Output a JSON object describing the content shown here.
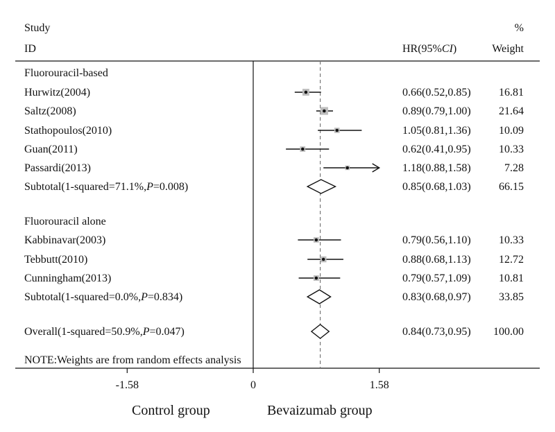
{
  "header": {
    "study_line1": "Study",
    "study_line2": "ID",
    "hr_prefix": "HR(95%",
    "hr_ci": "CI",
    "hr_suffix": ")",
    "weight_line1": "%",
    "weight_line2": "Weight"
  },
  "note": "NOTE:Weights are from random effects analysis",
  "group_labels": {
    "left": "Control group",
    "right": "Bevaizumab group"
  },
  "colors": {
    "ink": "#111111",
    "box": "#bdbdbd",
    "dash": "#777777"
  },
  "chart_data": {
    "type": "forest",
    "x_axis": {
      "ticks": [
        -1.58,
        0,
        1.58
      ],
      "tick_labels": [
        "-1.58",
        "0",
        "1.58"
      ],
      "xlim": [
        -1.58,
        1.58
      ]
    },
    "null_line": 0,
    "overall_line": 0.84,
    "rows": [
      {
        "kind": "heading",
        "label": "Fluorouracil-based"
      },
      {
        "kind": "study",
        "label": "Hurwitz(2004)",
        "hr": 0.66,
        "lo": 0.52,
        "hi": 0.85,
        "ci_text": "0.66(0.52,0.85)",
        "weight": 16.81,
        "weight_text": "16.81"
      },
      {
        "kind": "study",
        "label": "Saltz(2008)",
        "hr": 0.89,
        "lo": 0.79,
        "hi": 1.0,
        "ci_text": "0.89(0.79,1.00)",
        "weight": 21.64,
        "weight_text": "21.64"
      },
      {
        "kind": "study",
        "label": "Stathopoulos(2010)",
        "hr": 1.05,
        "lo": 0.81,
        "hi": 1.36,
        "ci_text": "1.05(0.81,1.36)",
        "weight": 10.09,
        "weight_text": "10.09"
      },
      {
        "kind": "study",
        "label": "Guan(2011)",
        "hr": 0.62,
        "lo": 0.41,
        "hi": 0.95,
        "ci_text": "0.62(0.41,0.95)",
        "weight": 10.33,
        "weight_text": "10.33"
      },
      {
        "kind": "study",
        "label": "Passardi(2013)",
        "hr": 1.18,
        "lo": 0.88,
        "hi": 1.58,
        "ci_text": "1.18(0.88,1.58)",
        "weight": 7.28,
        "weight_text": "7.28",
        "arrow": true
      },
      {
        "kind": "subtotal",
        "label_prefix": "Subtotal(1-squared=71.1%,",
        "p_letter": "P",
        "label_suffix": "=0.008)",
        "hr": 0.85,
        "lo": 0.68,
        "hi": 1.03,
        "ci_text": "0.85(0.68,1.03)",
        "weight_text": "66.15"
      },
      {
        "kind": "gap"
      },
      {
        "kind": "heading",
        "label": "Fluorouracil alone"
      },
      {
        "kind": "study",
        "label": "Kabbinavar(2003)",
        "hr": 0.79,
        "lo": 0.56,
        "hi": 1.1,
        "ci_text": "0.79(0.56,1.10)",
        "weight": 10.33,
        "weight_text": "10.33"
      },
      {
        "kind": "study",
        "label": "Tebbutt(2010)",
        "hr": 0.88,
        "lo": 0.68,
        "hi": 1.13,
        "ci_text": "0.88(0.68,1.13)",
        "weight": 12.72,
        "weight_text": "12.72"
      },
      {
        "kind": "study",
        "label": "Cunningham(2013)",
        "hr": 0.79,
        "lo": 0.57,
        "hi": 1.09,
        "ci_text": "0.79(0.57,1.09)",
        "weight": 10.81,
        "weight_text": "10.81"
      },
      {
        "kind": "subtotal",
        "label_prefix": "Subtotal(1-squared=0.0%,",
        "p_letter": "P",
        "label_suffix": "=0.834)",
        "hr": 0.83,
        "lo": 0.68,
        "hi": 0.97,
        "ci_text": "0.83(0.68,0.97)",
        "weight_text": "33.85"
      },
      {
        "kind": "gap"
      },
      {
        "kind": "overall",
        "label_prefix": "Overall(1-squared=50.9%,",
        "p_letter": "P",
        "label_suffix": "=0.047)",
        "hr": 0.84,
        "lo": 0.73,
        "hi": 0.95,
        "ci_text": "0.84(0.73,0.95)",
        "weight_text": "100.00"
      }
    ]
  }
}
